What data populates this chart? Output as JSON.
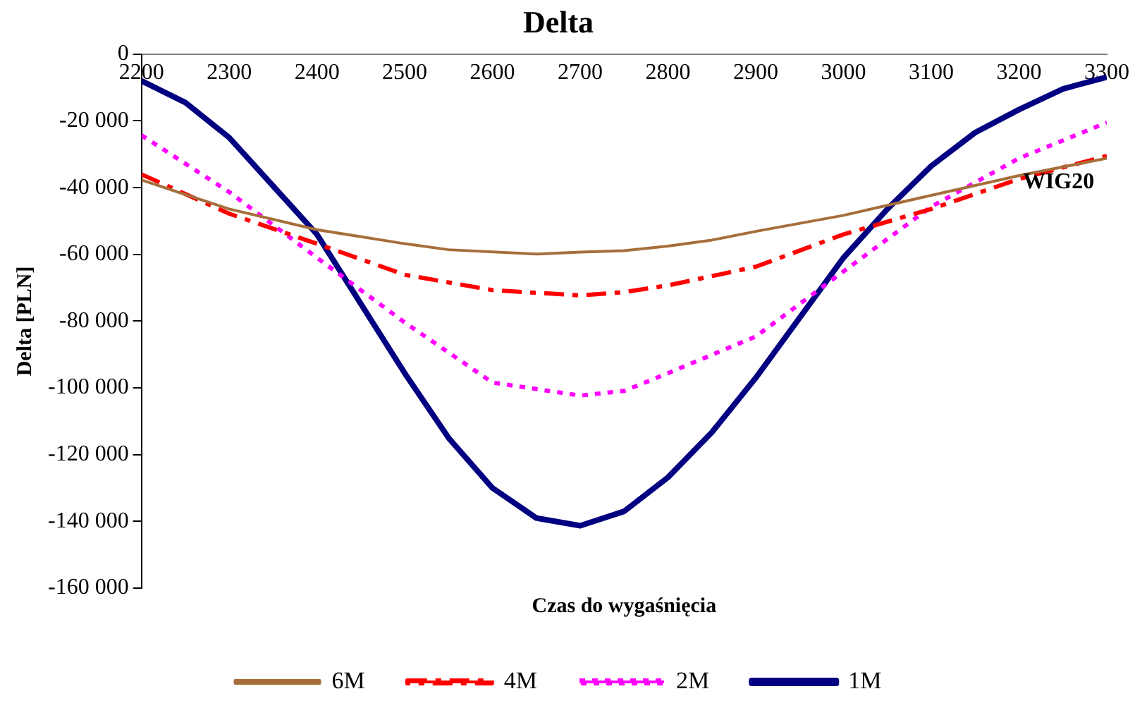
{
  "chart_data": {
    "type": "line",
    "title": "Delta",
    "xlabel": "Czas do wygaśnięcia",
    "ylabel": "Delta [PLN]",
    "xlim": [
      2200,
      3300
    ],
    "xticks": [
      2200,
      2300,
      2400,
      2500,
      2600,
      2700,
      2800,
      2900,
      3000,
      3100,
      3200,
      3300
    ],
    "ylim": [
      -160000,
      0
    ],
    "yticks": [
      {
        "value": -160000,
        "label": "-160 000"
      },
      {
        "value": -140000,
        "label": "-140 000"
      },
      {
        "value": -120000,
        "label": "-120 000"
      },
      {
        "value": -100000,
        "label": "-100 000"
      },
      {
        "value": -80000,
        "label": "-80 000"
      },
      {
        "value": -60000,
        "label": "-60 000"
      },
      {
        "value": -40000,
        "label": "-40 000"
      },
      {
        "value": -20000,
        "label": "-20 000"
      },
      0
    ],
    "grid": false,
    "legend": "bottom",
    "marker": "none",
    "annotations": [
      "WIG20"
    ],
    "series": [
      {
        "name": "6M",
        "color": "#a66e3a",
        "line_style": "solid",
        "x": [
          2200,
          2300,
          2400,
          2500,
          2550,
          2650,
          2700,
          2750,
          2800,
          2850,
          2900,
          3000,
          3100,
          3200,
          3300
        ],
        "values": [
          -37700,
          -46400,
          -52600,
          -56800,
          -58600,
          -59900,
          -59300,
          -58900,
          -57500,
          -55700,
          -53100,
          -48300,
          -42300,
          -36400,
          -31200
        ]
      },
      {
        "name": "4M",
        "color": "#ff0000",
        "line_style": "dashed",
        "x": [
          2200,
          2300,
          2400,
          2500,
          2600,
          2700,
          2750,
          2800,
          2900,
          3000,
          3100,
          3200,
          3300
        ],
        "values": [
          -36000,
          -47800,
          -56800,
          -66100,
          -70700,
          -72300,
          -71300,
          -69300,
          -63700,
          -54000,
          -46400,
          -37400,
          -30500
        ]
      },
      {
        "name": "2M",
        "color": "#ff00ff",
        "line_style": "dotted",
        "x": [
          2200,
          2300,
          2400,
          2500,
          2600,
          2700,
          2750,
          2800,
          2900,
          3000,
          3100,
          3200,
          3300
        ],
        "values": [
          -24300,
          -41300,
          -61000,
          -80400,
          -98400,
          -102300,
          -100900,
          -95600,
          -84600,
          -65100,
          -45700,
          -31200,
          -20500
        ]
      },
      {
        "name": "1M",
        "color": "#000080",
        "line_style": "solid",
        "x": [
          2200,
          2250,
          2300,
          2350,
          2400,
          2450,
          2500,
          2550,
          2600,
          2650,
          2700,
          2750,
          2800,
          2850,
          2900,
          2950,
          3000,
          3050,
          3100,
          3150,
          3200,
          3250,
          3300
        ],
        "values": [
          -8000,
          -14500,
          -25000,
          -39500,
          -54000,
          -74800,
          -95600,
          -115000,
          -130000,
          -139000,
          -141300,
          -137000,
          -126800,
          -113300,
          -97000,
          -79000,
          -61000,
          -46400,
          -33500,
          -23500,
          -16600,
          -10400,
          -6900
        ]
      }
    ]
  }
}
